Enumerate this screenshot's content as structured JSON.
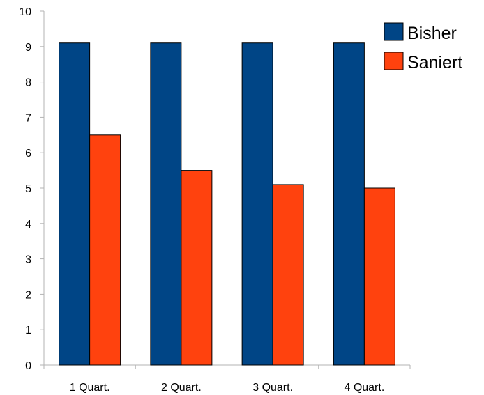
{
  "chart_data": {
    "type": "bar",
    "categories": [
      "1 Quart.",
      "2 Quart.",
      "3 Quart.",
      "4 Quart."
    ],
    "series": [
      {
        "name": "Bisher",
        "values": [
          9.1,
          9.1,
          9.1,
          9.1
        ],
        "color": "#004586"
      },
      {
        "name": "Saniert",
        "values": [
          6.5,
          5.5,
          5.1,
          5.0
        ],
        "color": "#ff420e"
      }
    ],
    "ylim": [
      0,
      10
    ],
    "yticks": [
      "0",
      "1",
      "2",
      "3",
      "4",
      "5",
      "6",
      "7",
      "8",
      "9",
      "10"
    ],
    "grid": false,
    "legend_position": "top-right",
    "axis_color": "#b3b3b3",
    "bar_outline_color": "#000000"
  }
}
